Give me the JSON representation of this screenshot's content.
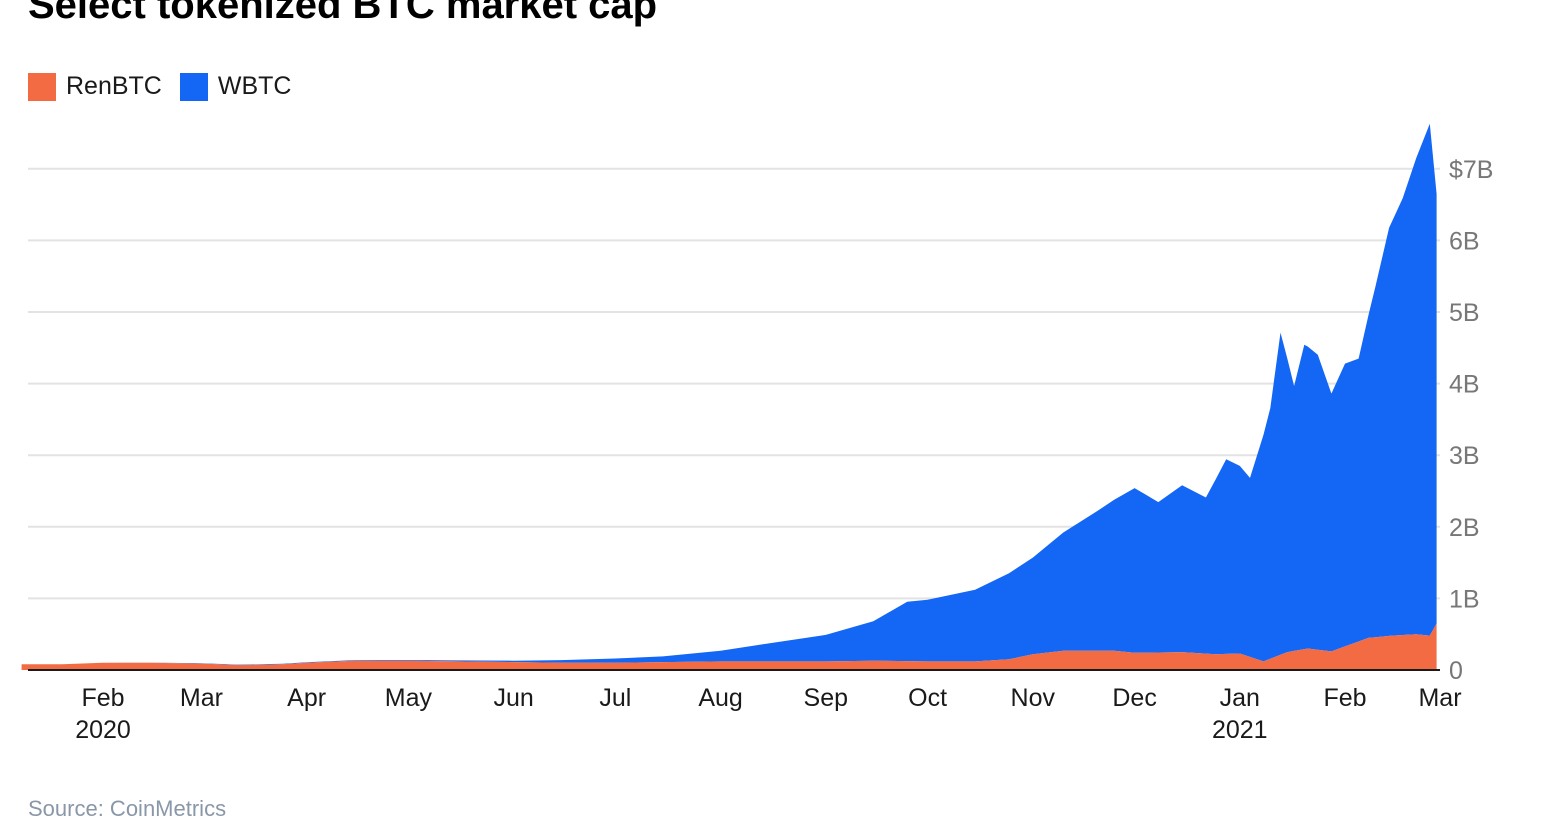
{
  "chart_data": {
    "type": "area",
    "stacked": true,
    "title": "Select tokenized BTC market cap",
    "source": "Source: CoinMetrics",
    "legend_position": "top-left",
    "grid": true,
    "ylim": [
      0,
      7.7
    ],
    "y_unit": "billions USD",
    "y_ticks": [
      {
        "value": 0,
        "label": "0"
      },
      {
        "value": 1,
        "label": "1B"
      },
      {
        "value": 2,
        "label": "2B"
      },
      {
        "value": 3,
        "label": "3B"
      },
      {
        "value": 4,
        "label": "4B"
      },
      {
        "value": 5,
        "label": "5B"
      },
      {
        "value": 6,
        "label": "6B"
      },
      {
        "value": 7,
        "label": "$7B"
      }
    ],
    "x_ticks": [
      {
        "date": "2020-02-01",
        "label": "Feb",
        "sublabel": "2020"
      },
      {
        "date": "2020-03-01",
        "label": "Mar",
        "sublabel": ""
      },
      {
        "date": "2020-04-01",
        "label": "Apr",
        "sublabel": ""
      },
      {
        "date": "2020-05-01",
        "label": "May",
        "sublabel": ""
      },
      {
        "date": "2020-06-01",
        "label": "Jun",
        "sublabel": ""
      },
      {
        "date": "2020-07-01",
        "label": "Jul",
        "sublabel": ""
      },
      {
        "date": "2020-08-01",
        "label": "Aug",
        "sublabel": ""
      },
      {
        "date": "2020-09-01",
        "label": "Sep",
        "sublabel": ""
      },
      {
        "date": "2020-10-01",
        "label": "Oct",
        "sublabel": ""
      },
      {
        "date": "2020-11-01",
        "label": "Nov",
        "sublabel": ""
      },
      {
        "date": "2020-12-01",
        "label": "Dec",
        "sublabel": ""
      },
      {
        "date": "2021-01-01",
        "label": "Jan",
        "sublabel": "2021"
      },
      {
        "date": "2021-02-01",
        "label": "Feb",
        "sublabel": ""
      },
      {
        "date": "2021-03-01",
        "label": "Mar",
        "sublabel": ""
      }
    ],
    "series": [
      {
        "name": "RenBTC",
        "color": "#f26b43",
        "points": [
          [
            "2020-01-08",
            0.08
          ],
          [
            "2020-01-20",
            0.08
          ],
          [
            "2020-02-01",
            0.1
          ],
          [
            "2020-02-15",
            0.1
          ],
          [
            "2020-03-01",
            0.09
          ],
          [
            "2020-03-12",
            0.07
          ],
          [
            "2020-03-25",
            0.08
          ],
          [
            "2020-04-01",
            0.1
          ],
          [
            "2020-04-15",
            0.13
          ],
          [
            "2020-05-01",
            0.13
          ],
          [
            "2020-05-15",
            0.12
          ],
          [
            "2020-06-01",
            0.11
          ],
          [
            "2020-06-15",
            0.1
          ],
          [
            "2020-07-01",
            0.1
          ],
          [
            "2020-07-15",
            0.11
          ],
          [
            "2020-08-01",
            0.12
          ],
          [
            "2020-08-15",
            0.12
          ],
          [
            "2020-09-01",
            0.12
          ],
          [
            "2020-09-15",
            0.13
          ],
          [
            "2020-10-01",
            0.12
          ],
          [
            "2020-10-15",
            0.12
          ],
          [
            "2020-10-25",
            0.15
          ],
          [
            "2020-11-01",
            0.22
          ],
          [
            "2020-11-10",
            0.27
          ],
          [
            "2020-11-25",
            0.27
          ],
          [
            "2020-12-01",
            0.24
          ],
          [
            "2020-12-15",
            0.25
          ],
          [
            "2020-12-25",
            0.22
          ],
          [
            "2021-01-01",
            0.23
          ],
          [
            "2021-01-08",
            0.12
          ],
          [
            "2021-01-15",
            0.25
          ],
          [
            "2021-01-21",
            0.3
          ],
          [
            "2021-01-28",
            0.26
          ],
          [
            "2021-02-01",
            0.33
          ],
          [
            "2021-02-08",
            0.45
          ],
          [
            "2021-02-15",
            0.48
          ],
          [
            "2021-02-22",
            0.5
          ],
          [
            "2021-02-26",
            0.48
          ],
          [
            "2021-02-28",
            0.65
          ]
        ]
      },
      {
        "name": "WBTC",
        "color": "#1466f5",
        "points": [
          [
            "2020-01-08",
            0.0
          ],
          [
            "2020-05-01",
            0.01
          ],
          [
            "2020-06-01",
            0.02
          ],
          [
            "2020-07-01",
            0.06
          ],
          [
            "2020-07-15",
            0.08
          ],
          [
            "2020-08-01",
            0.15
          ],
          [
            "2020-08-15",
            0.25
          ],
          [
            "2020-09-01",
            0.37
          ],
          [
            "2020-09-15",
            0.55
          ],
          [
            "2020-09-25",
            0.83
          ],
          [
            "2020-10-01",
            0.86
          ],
          [
            "2020-10-15",
            1.0
          ],
          [
            "2020-10-25",
            1.2
          ],
          [
            "2020-11-01",
            1.35
          ],
          [
            "2020-11-10",
            1.65
          ],
          [
            "2020-11-20",
            1.95
          ],
          [
            "2020-12-01",
            2.3
          ],
          [
            "2020-12-08",
            2.1
          ],
          [
            "2020-12-15",
            2.33
          ],
          [
            "2020-12-22",
            2.18
          ],
          [
            "2020-12-28",
            2.72
          ],
          [
            "2021-01-01",
            2.62
          ],
          [
            "2021-01-04",
            2.5
          ],
          [
            "2021-01-10",
            3.5
          ],
          [
            "2021-01-13",
            4.5
          ],
          [
            "2021-01-17",
            3.7
          ],
          [
            "2021-01-20",
            4.25
          ],
          [
            "2021-01-24",
            4.12
          ],
          [
            "2021-01-28",
            3.6
          ],
          [
            "2021-02-01",
            3.95
          ],
          [
            "2021-02-05",
            3.95
          ],
          [
            "2021-02-10",
            4.9
          ],
          [
            "2021-02-14",
            5.7
          ],
          [
            "2021-02-18",
            6.1
          ],
          [
            "2021-02-22",
            6.65
          ],
          [
            "2021-02-26",
            7.15
          ],
          [
            "2021-02-28",
            6.0
          ]
        ]
      }
    ]
  }
}
